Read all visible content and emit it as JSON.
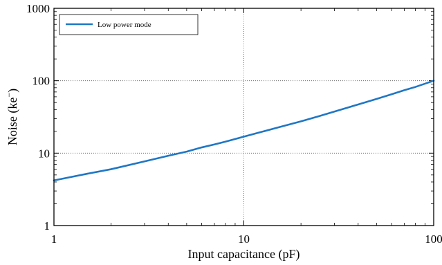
{
  "chart_data": {
    "type": "line",
    "title": "",
    "xlabel": "Input capacitance (pF)",
    "ylabel_main": "Noise (ke",
    "ylabel_sup": "−",
    "ylabel_close": ")",
    "xscale": "log",
    "yscale": "log",
    "xlim": [
      1,
      100
    ],
    "ylim": [
      1,
      1000
    ],
    "x_ticks": [
      {
        "value": 1,
        "label": "1"
      },
      {
        "value": 10,
        "label": "10"
      },
      {
        "value": 100,
        "label": "100"
      }
    ],
    "y_ticks": [
      {
        "value": 1,
        "label": "1"
      },
      {
        "value": 10,
        "label": "10"
      },
      {
        "value": 100,
        "label": "100"
      },
      {
        "value": 1000,
        "label": "1000"
      }
    ],
    "grid": true,
    "legend_position": "top-left",
    "series": [
      {
        "name": "Low power mode",
        "color": "#1f77c4",
        "x": [
          1,
          1.5,
          2,
          3,
          4,
          5,
          6,
          7,
          8,
          10,
          12,
          15,
          20,
          25,
          30,
          40,
          50,
          60,
          70,
          80,
          100
        ],
        "y": [
          4.2,
          5.2,
          6.0,
          7.7,
          9.2,
          10.5,
          12.0,
          13.2,
          14.4,
          16.9,
          19.2,
          22.5,
          27.5,
          32.5,
          37.5,
          47,
          56,
          65,
          74,
          82,
          100
        ]
      }
    ]
  }
}
